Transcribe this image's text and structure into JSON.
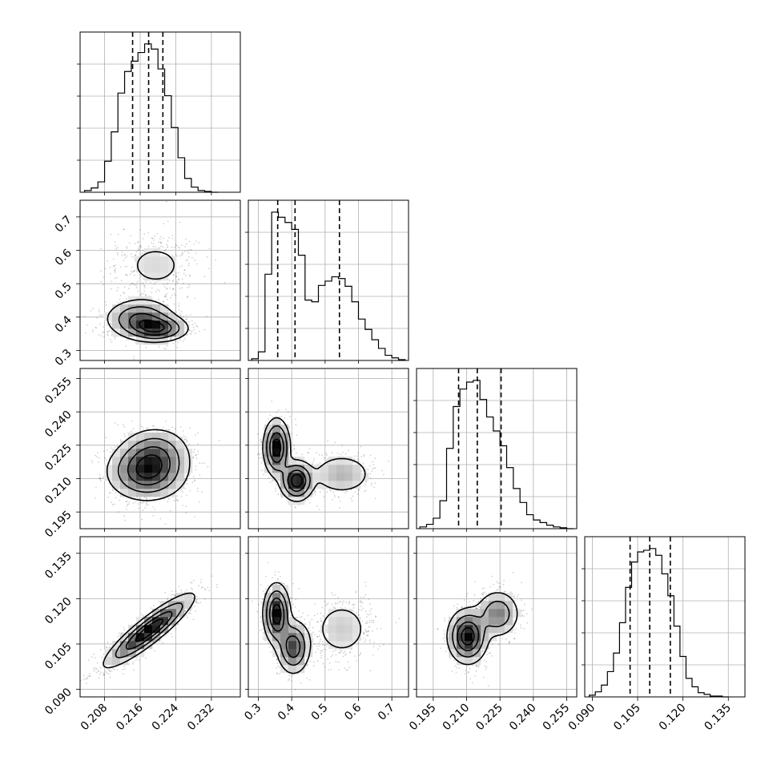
{
  "chart_data": {
    "type": "corner",
    "description_free": true,
    "parameters": [
      {
        "index": 0,
        "range": [
          0.2025,
          0.2385
        ],
        "ticks": [
          "0.208",
          "0.216",
          "0.224",
          "0.232"
        ],
        "tick_values": [
          0.208,
          0.216,
          0.224,
          0.232
        ],
        "quantiles": [
          0.2143,
          0.2179,
          0.2211
        ],
        "hist_bins": [
          0.2035,
          0.205,
          0.2065,
          0.208,
          0.2095,
          0.211,
          0.2125,
          0.214,
          0.2155,
          0.217,
          0.2185,
          0.22,
          0.2215,
          0.223,
          0.2245,
          0.226,
          0.2275,
          0.229,
          0.2305,
          0.232
        ],
        "hist_counts": [
          2,
          5,
          12,
          36,
          70,
          115,
          140,
          152,
          162,
          172,
          166,
          143,
          112,
          75,
          40,
          16,
          6,
          2,
          1,
          0
        ]
      },
      {
        "index": 1,
        "range": [
          0.27,
          0.75
        ],
        "ticks": [
          "0.3",
          "0.4",
          "0.5",
          "0.6",
          "0.7"
        ],
        "tick_values": [
          0.3,
          0.4,
          0.5,
          0.6,
          0.7
        ],
        "quantiles": [
          0.358,
          0.41,
          0.543
        ],
        "hist_bins": [
          0.28,
          0.3,
          0.32,
          0.34,
          0.36,
          0.38,
          0.4,
          0.42,
          0.44,
          0.46,
          0.48,
          0.5,
          0.52,
          0.54,
          0.56,
          0.58,
          0.6,
          0.62,
          0.64,
          0.66,
          0.68,
          0.7,
          0.72
        ],
        "hist_counts": [
          2,
          10,
          100,
          172,
          166,
          160,
          152,
          122,
          70,
          68,
          87,
          92,
          97,
          95,
          86,
          68,
          48,
          36,
          24,
          14,
          6,
          3,
          1
        ]
      },
      {
        "index": 2,
        "range": [
          0.1875,
          0.2595
        ],
        "ticks": [
          "0.195",
          "0.210",
          "0.225",
          "0.240",
          "0.255"
        ],
        "tick_values": [
          0.195,
          0.21,
          0.225,
          0.24,
          0.255
        ],
        "quantiles": [
          0.2064,
          0.2148,
          0.2255
        ],
        "hist_bins": [
          0.189,
          0.192,
          0.195,
          0.198,
          0.201,
          0.204,
          0.207,
          0.21,
          0.213,
          0.216,
          0.219,
          0.222,
          0.225,
          0.228,
          0.231,
          0.234,
          0.237,
          0.24,
          0.243,
          0.246,
          0.249,
          0.252,
          0.255
        ],
        "hist_counts": [
          2,
          5,
          12,
          32,
          92,
          140,
          160,
          168,
          170,
          148,
          128,
          112,
          95,
          70,
          46,
          30,
          16,
          10,
          7,
          4,
          2,
          1,
          0
        ]
      },
      {
        "index": 3,
        "range": [
          0.0875,
          0.1405
        ],
        "ticks": [
          "0.090",
          "0.105",
          "0.120",
          "0.135"
        ],
        "tick_values": [
          0.09,
          0.105,
          0.12,
          0.135
        ],
        "quantiles": [
          0.1025,
          0.109,
          0.1158
        ],
        "hist_bins": [
          0.089,
          0.091,
          0.093,
          0.095,
          0.097,
          0.099,
          0.101,
          0.103,
          0.105,
          0.107,
          0.109,
          0.111,
          0.113,
          0.115,
          0.117,
          0.119,
          0.121,
          0.123,
          0.125,
          0.127,
          0.129,
          0.131,
          0.133
        ],
        "hist_counts": [
          2,
          6,
          14,
          30,
          52,
          88,
          130,
          160,
          172,
          174,
          176,
          168,
          146,
          120,
          84,
          48,
          22,
          12,
          5,
          3,
          1,
          1,
          0
        ]
      }
    ],
    "pairs": [
      {
        "row": 1,
        "col": 0,
        "modes": [
          {
            "x": 0.216,
            "y": 0.395,
            "sx": 0.004,
            "sy": 0.03,
            "w": 0.45
          },
          {
            "x": 0.22,
            "y": 0.365,
            "sx": 0.0035,
            "sy": 0.02,
            "w": 0.3
          },
          {
            "x": 0.2195,
            "y": 0.555,
            "sx": 0.005,
            "sy": 0.05,
            "w": 0.25
          }
        ]
      },
      {
        "row": 2,
        "col": 0,
        "modes": [
          {
            "x": 0.2175,
            "y": 0.213,
            "sx": 0.0045,
            "sy": 0.0065,
            "w": 0.7
          },
          {
            "x": 0.2195,
            "y": 0.222,
            "sx": 0.004,
            "sy": 0.006,
            "w": 0.3
          }
        ]
      },
      {
        "row": 3,
        "col": 0,
        "modes": [
          {
            "x": 0.218,
            "y": 0.1095,
            "sx": 0.005,
            "sy": 0.006,
            "w": 1.0,
            "rho": 0.9
          }
        ]
      },
      {
        "row": 2,
        "col": 1,
        "modes": [
          {
            "x": 0.355,
            "y": 0.224,
            "sx": 0.02,
            "sy": 0.0065,
            "w": 0.4
          },
          {
            "x": 0.415,
            "y": 0.209,
            "sx": 0.025,
            "sy": 0.0045,
            "w": 0.35
          },
          {
            "x": 0.55,
            "y": 0.212,
            "sx": 0.05,
            "sy": 0.005,
            "w": 0.25
          }
        ]
      },
      {
        "row": 3,
        "col": 1,
        "modes": [
          {
            "x": 0.355,
            "y": 0.115,
            "sx": 0.02,
            "sy": 0.005,
            "w": 0.4
          },
          {
            "x": 0.405,
            "y": 0.104,
            "sx": 0.025,
            "sy": 0.0045,
            "w": 0.35
          },
          {
            "x": 0.55,
            "y": 0.11,
            "sx": 0.05,
            "sy": 0.0055,
            "w": 0.25
          }
        ]
      },
      {
        "row": 3,
        "col": 2,
        "modes": [
          {
            "x": 0.2105,
            "y": 0.1075,
            "sx": 0.0045,
            "sy": 0.0045,
            "w": 0.65
          },
          {
            "x": 0.224,
            "y": 0.115,
            "sx": 0.005,
            "sy": 0.004,
            "w": 0.35
          }
        ]
      }
    ],
    "grid": true
  }
}
